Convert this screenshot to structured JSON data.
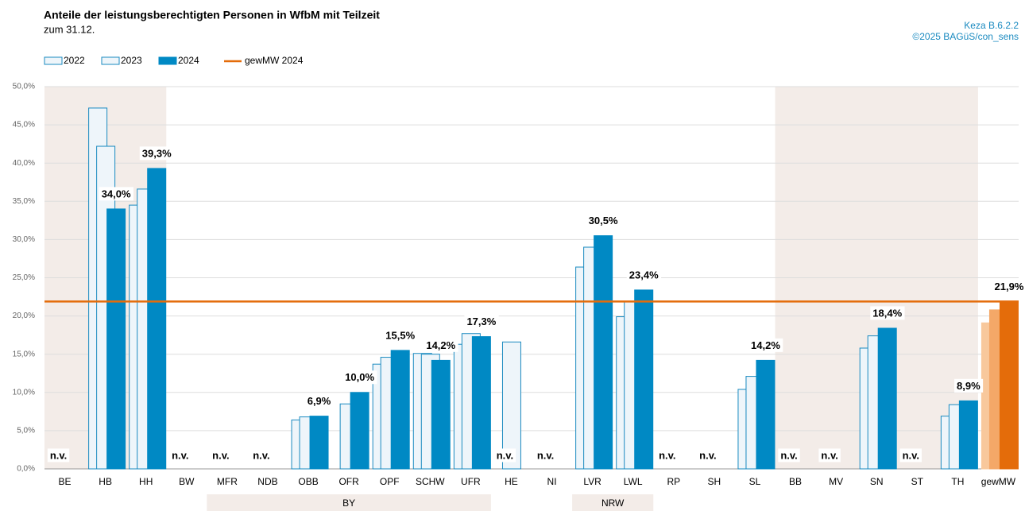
{
  "chart_data": {
    "type": "bar",
    "title": "Anteile der leistungsberechtigten Personen in WfbM mit Teilzeit",
    "subtitle": "zum 31.12.",
    "source": [
      "Keza B.6.2.2",
      "©2025 BAGüS/con_sens"
    ],
    "categories": [
      "BE",
      "HB",
      "HH",
      "BW",
      "MFR",
      "NDB",
      "OBB",
      "OFR",
      "OPF",
      "SCHW",
      "UFR",
      "HE",
      "NI",
      "LVR",
      "LWL",
      "RP",
      "SH",
      "SL",
      "BB",
      "MV",
      "SN",
      "ST",
      "TH",
      "gewMW"
    ],
    "series": [
      {
        "name": "2022",
        "color": "#eef5fa",
        "stroke": "#1a8ac0",
        "highlight_color": "#f8c89c",
        "values": [
          null,
          47.2,
          34.5,
          null,
          null,
          null,
          6.4,
          null,
          13.7,
          15.1,
          16.3,
          null,
          null,
          26.4,
          19.9,
          null,
          null,
          10.4,
          null,
          null,
          15.8,
          null,
          6.9,
          19.1
        ]
      },
      {
        "name": "2023",
        "color": "#eef5fa",
        "stroke": "#1a8ac0",
        "highlight_color": "#f4a868",
        "values": [
          null,
          42.2,
          36.6,
          null,
          null,
          null,
          6.8,
          8.5,
          14.6,
          15.0,
          17.7,
          16.6,
          null,
          29.0,
          21.9,
          null,
          null,
          12.1,
          null,
          null,
          17.4,
          null,
          8.4,
          20.8
        ]
      },
      {
        "name": "2024",
        "color": "#0089c4",
        "stroke": "#0089c4",
        "highlight_color": "#e46c0a",
        "values": [
          null,
          34.0,
          39.3,
          null,
          null,
          null,
          6.9,
          10.0,
          15.5,
          14.2,
          17.3,
          null,
          null,
          30.5,
          23.4,
          null,
          null,
          14.2,
          null,
          null,
          18.4,
          null,
          8.9,
          21.9
        ],
        "value_labels": [
          "n.v.",
          "34,0%",
          "39,3%",
          "n.v.",
          "n.v.",
          "n.v.",
          "6,9%",
          "10,0%",
          "15,5%",
          "14,2%",
          "17,3%",
          "n.v.",
          "n.v.",
          "30,5%",
          "23,4%",
          "n.v.",
          "n.v.",
          "14,2%",
          "n.v.",
          "n.v.",
          "18,4%",
          "n.v.",
          "8,9%",
          "21,9%"
        ]
      }
    ],
    "highlight_category": "gewMW",
    "reference_line": {
      "name": "gewMW 2024",
      "value": 21.9,
      "color": "#e46c0a"
    },
    "groups": [
      {
        "label": "BY",
        "from": "MFR",
        "to": "UFR"
      },
      {
        "label": "NRW",
        "from": "LVR",
        "to": "LWL"
      }
    ],
    "shaded": [
      {
        "from": "BE",
        "to": "HH"
      },
      {
        "from": "BB",
        "to": "TH"
      }
    ],
    "shade_color": "#f3ece8",
    "ylim": [
      0,
      50
    ],
    "yticks": [
      {
        "value": 0,
        "label": "0,0%"
      },
      {
        "value": 5,
        "label": "5,0%"
      },
      {
        "value": 10,
        "label": "10,0%"
      },
      {
        "value": 15,
        "label": "15,0%"
      },
      {
        "value": 20,
        "label": "20,0%"
      },
      {
        "value": 25,
        "label": "25,0%"
      },
      {
        "value": 30,
        "label": "30,0%"
      },
      {
        "value": 35,
        "label": "35,0%"
      },
      {
        "value": 40,
        "label": "40,0%"
      },
      {
        "value": 45,
        "label": "45,0%"
      },
      {
        "value": 50,
        "label": "50,0%"
      }
    ],
    "grid": true
  }
}
